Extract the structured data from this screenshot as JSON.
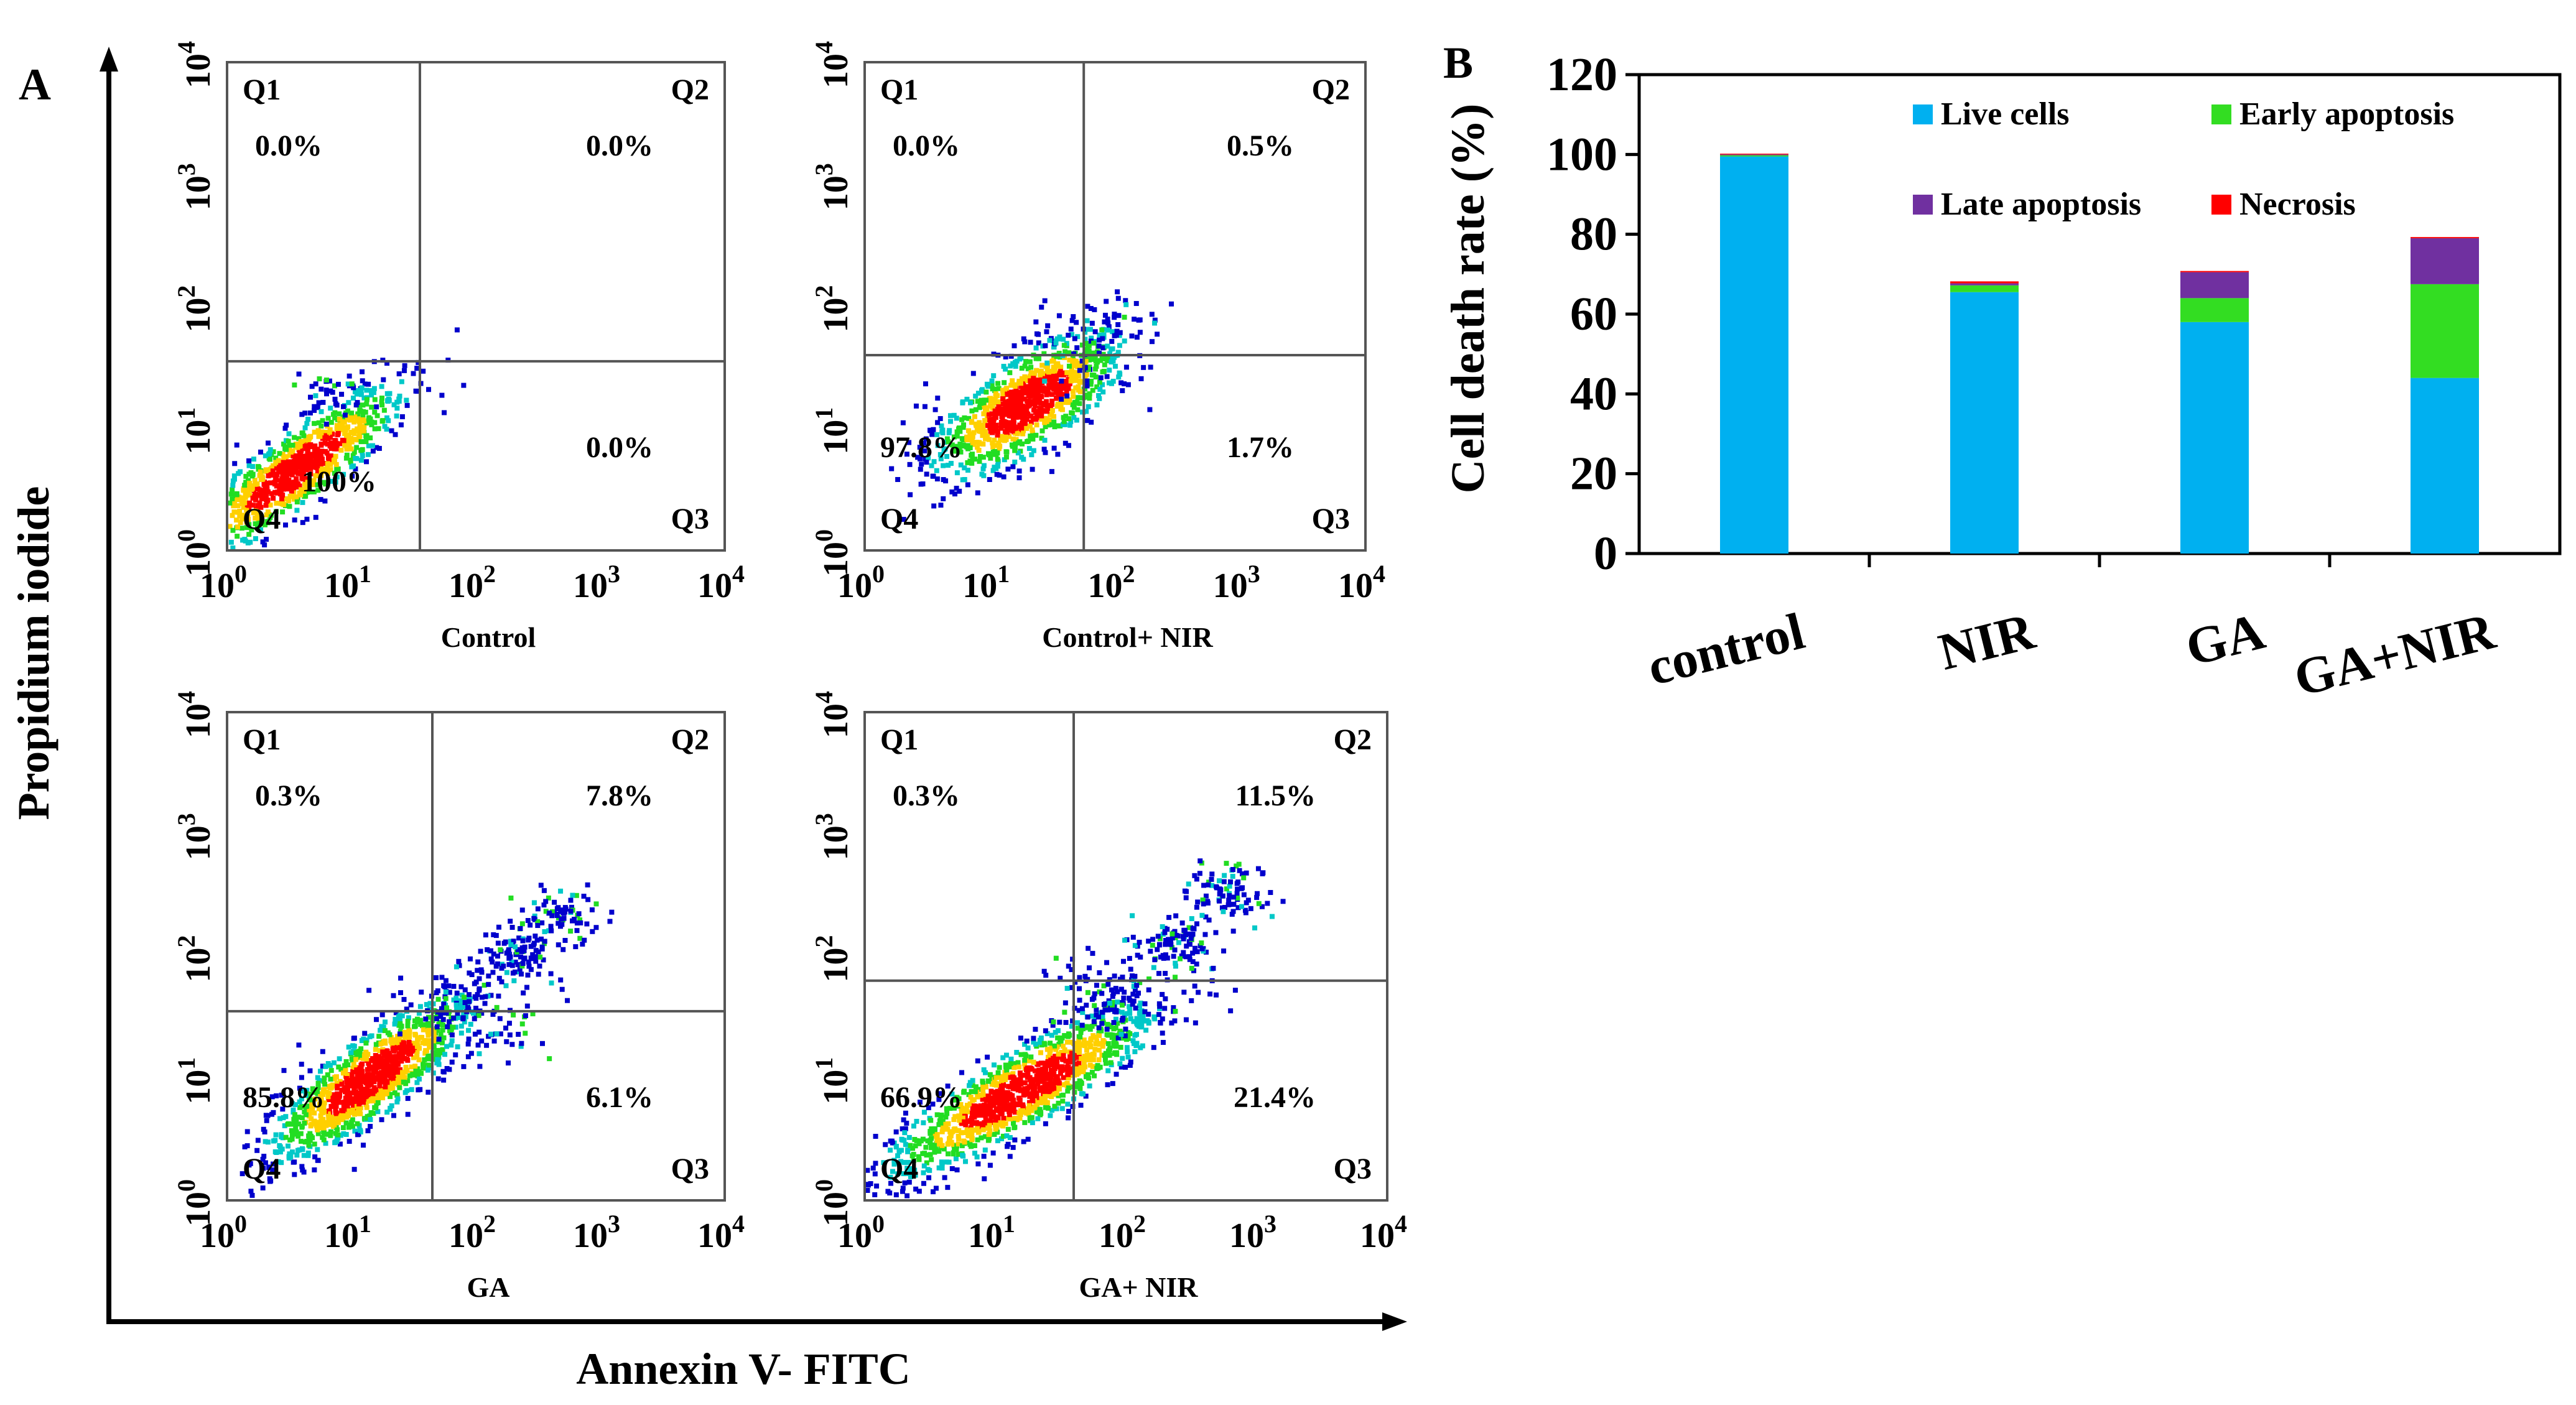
{
  "figure": {
    "panel_a_letter": "A",
    "panel_b_letter": "B",
    "y_axis_title": "Propidium iodide",
    "x_axis_title": "Annexin V- FITC"
  },
  "tick_labels": [
    {
      "base": "10",
      "exp": "0"
    },
    {
      "base": "10",
      "exp": "1"
    },
    {
      "base": "10",
      "exp": "2"
    },
    {
      "base": "10",
      "exp": "3"
    },
    {
      "base": "10",
      "exp": "4"
    }
  ],
  "panels": [
    {
      "caption": "Control",
      "q1": "Q1",
      "q2": "Q2",
      "q3": "Q3",
      "q4": "Q4",
      "q1_pct": "0.0%",
      "q2_pct": "0.0%",
      "q3_pct": "0.0%",
      "q4_pct": "100%",
      "gate_x": 1.55,
      "gate_y": 1.55
    },
    {
      "caption": "Control+ NIR",
      "q1": "Q1",
      "q2": "Q2",
      "q3": "Q3",
      "q4": "Q4",
      "q1_pct": "0.0%",
      "q2_pct": "0.5%",
      "q3_pct": "1.7%",
      "q4_pct": "97.8%",
      "gate_x": 1.75,
      "gate_y": 1.6
    },
    {
      "caption": "GA",
      "q1": "Q1",
      "q2": "Q2",
      "q3": "Q3",
      "q4": "Q4",
      "q1_pct": "0.3%",
      "q2_pct": "7.8%",
      "q3_pct": "6.1%",
      "q4_pct": "85.8%",
      "gate_x": 1.65,
      "gate_y": 1.55
    },
    {
      "caption": "GA+ NIR",
      "q1": "Q1",
      "q2": "Q2",
      "q3": "Q3",
      "q4": "Q4",
      "q1_pct": "0.3%",
      "q2_pct": "11.5%",
      "q3_pct": "21.4%",
      "q4_pct": "66.9%",
      "gate_x": 1.6,
      "gate_y": 1.8
    }
  ],
  "colors": {
    "live": "#00B0F0",
    "early": "#33DD22",
    "late": "#7030A0",
    "necrosis": "#FF0000",
    "density_low": "#0000CC",
    "density_mid": "#00C8C8",
    "density_high": "#FF0000"
  },
  "chart_data": {
    "type": "bar",
    "stacked": true,
    "categories": [
      "control",
      "NIR",
      "GA",
      "GA+NIR"
    ],
    "ylabel": "Cell death rate (%)",
    "xlabel": "",
    "ylim": [
      0,
      120
    ],
    "yticks": [
      0,
      20,
      40,
      60,
      80,
      100,
      120
    ],
    "legend_position": "top (inside plot)",
    "series": [
      {
        "name": "Live cells",
        "color": "#00B0F0",
        "values": [
          99.5,
          65.5,
          58,
          44
        ]
      },
      {
        "name": "Early apoptosis",
        "color": "#33DD22",
        "values": [
          0.3,
          1.7,
          6,
          23.5
        ]
      },
      {
        "name": "Late apoptosis",
        "color": "#7030A0",
        "values": [
          0.2,
          0.5,
          6.5,
          11.5
        ]
      },
      {
        "name": "Necrosis",
        "color": "#FF0000",
        "values": [
          0.2,
          0.5,
          0.3,
          0.3
        ]
      }
    ]
  }
}
